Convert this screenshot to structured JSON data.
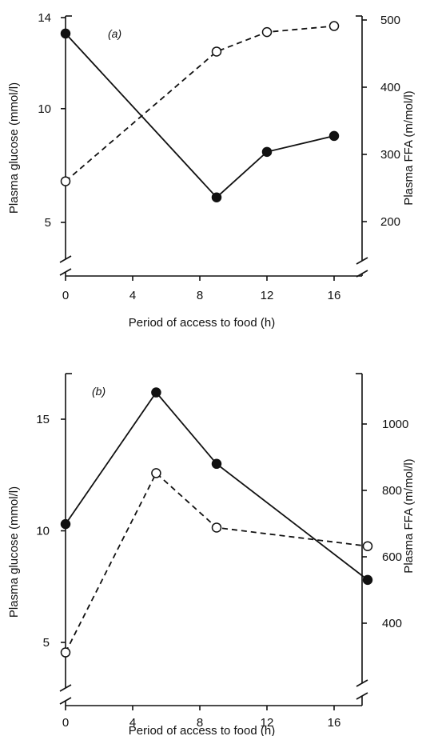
{
  "chart_data": [
    {
      "type": "line",
      "panel_label": "(a)",
      "xlabel": "Period of access to food (h)",
      "ylabel_left": "Plasma glucose (mmol/l)",
      "ylabel_right": "Plasma FFA (m/mol/l)",
      "xlim": [
        0,
        18
      ],
      "ylim_left": [
        3,
        14
      ],
      "ylim_right": [
        114,
        500
      ],
      "x_ticks": [
        "0",
        "4",
        "8",
        "12",
        "16"
      ],
      "y_left_ticks": [
        "14",
        "10",
        "5"
      ],
      "y_right_ticks": [
        "500",
        "400",
        "300",
        "200"
      ],
      "axis_breaks": true,
      "series": [
        {
          "axis": "left",
          "line": "solid",
          "marker": "filled-circle",
          "x": [
            0,
            9,
            12,
            16
          ],
          "y": [
            13.3,
            6.1,
            8.1,
            8.8
          ]
        },
        {
          "axis": "right",
          "line": "dashed",
          "marker": "open-circle",
          "x": [
            0,
            9,
            12,
            16
          ],
          "y": [
            260,
            453,
            482,
            491
          ]
        }
      ]
    },
    {
      "type": "line",
      "panel_label": "(b)",
      "xlabel": "Period of access to food (h)",
      "ylabel_left": "Plasma glucose (mmol/l)",
      "ylabel_right": "Plasma FFA (m/mol/l)",
      "xlim": [
        0,
        18
      ],
      "ylim_left": [
        2,
        18
      ],
      "ylim_right": [
        280,
        1300
      ],
      "x_ticks": [
        "0",
        "4",
        "8",
        "12",
        "16"
      ],
      "y_left_ticks": [
        "15",
        "10",
        "5"
      ],
      "y_right_ticks": [
        "1000",
        "800",
        "600",
        "400"
      ],
      "axis_breaks": true,
      "series": [
        {
          "axis": "left",
          "line": "solid",
          "marker": "filled-circle",
          "x": [
            0,
            5.4,
            9,
            18
          ],
          "y": [
            10.3,
            16.2,
            13.0,
            7.8
          ]
        },
        {
          "axis": "right",
          "line": "dashed",
          "marker": "open-circle",
          "x": [
            0,
            5.4,
            9,
            18
          ],
          "y": [
            312,
            852,
            688,
            632
          ]
        }
      ]
    }
  ]
}
